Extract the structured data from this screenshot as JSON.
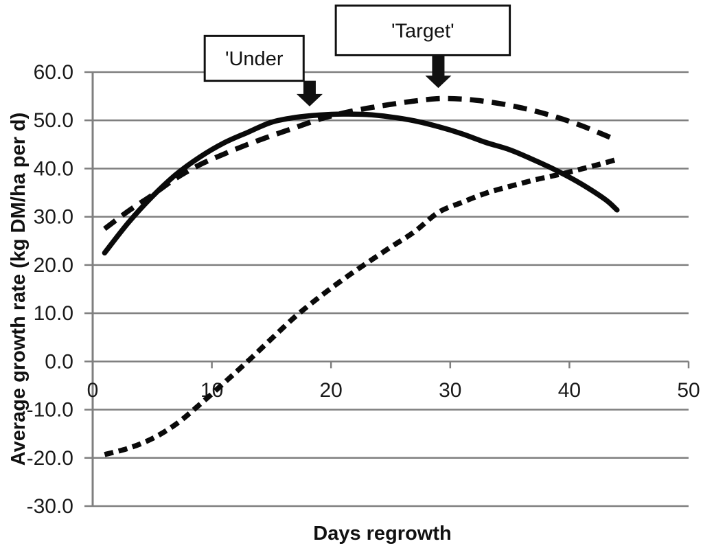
{
  "figure": {
    "background": "#ffffff"
  },
  "chart_data": {
    "type": "line",
    "title": "",
    "xlabel": "Days regrowth",
    "ylabel": "Average growth rate (kg DM/ha per d)",
    "xlim": [
      0,
      50
    ],
    "ylim": [
      -30,
      60
    ],
    "x_ticks": [
      "0",
      "10",
      "20",
      "30",
      "40",
      "50"
    ],
    "x_tick_values": [
      0,
      10,
      20,
      30,
      40,
      50
    ],
    "y_ticks": [
      "60.0",
      "50.0",
      "40.0",
      "30.0",
      "20.0",
      "10.0",
      "0.0",
      "-10.0",
      "-20.0",
      "-30.0"
    ],
    "y_tick_values": [
      60,
      50,
      40,
      30,
      20,
      10,
      0,
      -10,
      -20,
      -30
    ],
    "grid": "horizontal",
    "legend": "none",
    "axis_color": "#7f7f7f",
    "line_color": "#0a0a0a",
    "x": [
      1,
      3,
      5,
      7,
      9,
      11,
      13,
      15,
      17,
      19,
      21,
      23,
      25,
      27,
      29,
      31,
      33,
      35,
      37,
      39,
      41,
      43,
      44
    ],
    "series": [
      {
        "name": "solid curve (peak ~51 at day 21, pointed to by 'Under arrow)",
        "line_style": "solid",
        "y": [
          22.5,
          28.8,
          34.2,
          38.8,
          42.4,
          45.3,
          47.5,
          49.6,
          50.6,
          51.1,
          51.3,
          51.2,
          50.7,
          49.9,
          48.7,
          47.2,
          45.4,
          43.9,
          41.8,
          39.5,
          36.8,
          33.6,
          31.4
        ]
      },
      {
        "name": "long-dash curve (peak ~54.5 at day 29, pointed to by 'Target' arrow)",
        "line_style": "long-dash",
        "y": [
          27.5,
          31.2,
          34.5,
          38.0,
          40.8,
          43.0,
          45.0,
          46.8,
          48.5,
          50.2,
          51.5,
          52.5,
          53.3,
          54.0,
          54.5,
          54.4,
          53.9,
          53.1,
          52.0,
          50.6,
          48.9,
          46.9,
          45.8
        ]
      },
      {
        "name": "short-dash sigmoid curve (rises from -19.3 to ~42)",
        "line_style": "short-dash",
        "y": [
          -19.3,
          -18.0,
          -16.0,
          -13.0,
          -8.9,
          -4.5,
          0.0,
          4.7,
          9.3,
          13.3,
          17.0,
          20.4,
          23.7,
          26.9,
          30.9,
          33.0,
          34.9,
          36.3,
          37.6,
          38.7,
          39.9,
          41.2,
          41.9
        ]
      }
    ],
    "annotations": [
      {
        "label": "'Under",
        "arrow_day": 18.2,
        "arrow_tip_value": 52.9,
        "arrow_base_value": 58.2,
        "box_x": [
          9.4,
          17.7
        ],
        "box_top_value": 67.5,
        "box_bottom_value": 58.2
      },
      {
        "label": "'Target'",
        "arrow_day": 29.0,
        "arrow_tip_value": 56.7,
        "arrow_base_value": 63.5,
        "box_x": [
          20.4,
          35.0
        ],
        "box_top_value": 73.8,
        "box_bottom_value": 63.5
      }
    ]
  }
}
